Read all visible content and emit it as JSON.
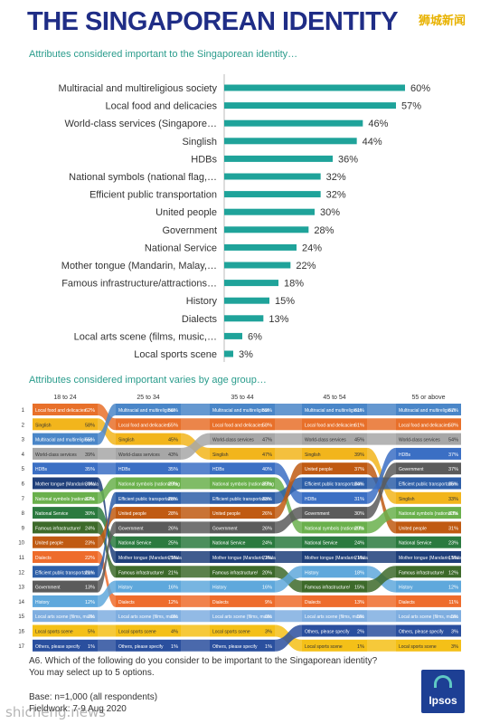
{
  "header": {
    "title": "THE SINGAPOREAN IDENTITY",
    "watermark": "狮城新闻",
    "subtitle_overall": "Attributes considered important to the Singaporean identity…",
    "subtitle_age": "Attributes considered important varies by age group…"
  },
  "footer": {
    "question": "A6. Which of the following do you consider to be important to the Singaporean identity? You may select up to 5 options.",
    "base": "Base: n=1,000 (all respondents)",
    "fieldwork": "Fieldwork: 7-9 Aug 2020",
    "logo_text": "Ipsos",
    "watermark": "shicheng.news"
  },
  "colors": {
    "title": "#1f2d86",
    "subtitle": "#2a9c8c",
    "bar": "#1fa39a"
  },
  "chart_data": [
    {
      "type": "bar",
      "orientation": "horizontal",
      "title": "Attributes considered important to the Singaporean identity…",
      "categories": [
        "Multiracial and multireligious society",
        "Local food and delicacies",
        "World-class services (Singapore…",
        "Singlish",
        "HDBs",
        "National symbols (national flag,…",
        "Efficient public transportation",
        "United people",
        "Government",
        "National Service",
        "Mother tongue (Mandarin, Malay,…",
        "Famous infrastructure/attractions…",
        "History",
        "Dialects",
        "Local arts scene (films, music,…",
        "Local sports scene"
      ],
      "values": [
        60,
        57,
        46,
        44,
        36,
        32,
        32,
        30,
        28,
        24,
        22,
        18,
        15,
        13,
        6,
        3
      ],
      "value_suffix": "%",
      "xlim": [
        0,
        60
      ]
    },
    {
      "type": "bump",
      "title": "Attributes considered important varies by age group…",
      "groups": [
        "18 to 24",
        "25 to 34",
        "35 to 44",
        "45 to 54",
        "55 or above"
      ],
      "ranks": [
        1,
        2,
        3,
        4,
        5,
        6,
        7,
        8,
        9,
        10,
        11,
        12,
        13,
        14,
        15,
        16,
        17
      ],
      "attribute_colors": {
        "Local food and delicacies": "#e8702a",
        "Singlish": "#f2b51c",
        "Multiracial and multireligious": "#4a86c8",
        "World-class services": "#a7a7a7",
        "HDBs": "#3b6fc4",
        "Mother tongue": "#1f3f7a",
        "National symbols": "#6ab04c",
        "National Service": "#2b7a3f",
        "Famous infrastructure": "#3d6a2a",
        "United people": "#c05a12",
        "Dialects": "#ee6c2c",
        "Efficient public transportation": "#2e5fa8",
        "Government": "#5b5b5b",
        "History": "#5fa8dc",
        "Local arts scene": "#7faee0",
        "Local sports scene": "#f4c018",
        "Others, please specify": "#2a4f9e"
      },
      "columns": [
        {
          "group": "18 to 24",
          "items": [
            {
              "label": "Local food and delicacies",
              "key": "Local food and delicacies",
              "value": "62%"
            },
            {
              "label": "Singlish",
              "key": "Singlish",
              "value": "58%"
            },
            {
              "label": "Multiracial and multireligious",
              "key": "Multiracial and multireligious",
              "value": "55%"
            },
            {
              "label": "World-class services",
              "key": "World-class services",
              "value": "39%"
            },
            {
              "label": "HDBs",
              "key": "HDBs",
              "value": "35%"
            },
            {
              "label": "Mother tongue (Mandarin, Mala",
              "key": "Mother tongue",
              "value": "30%"
            },
            {
              "label": "National symbols (national fla",
              "key": "National symbols",
              "value": "32%"
            },
            {
              "label": "National Service",
              "key": "National Service",
              "value": "30%"
            },
            {
              "label": "Famous infrastructure/",
              "key": "Famous infrastructure",
              "value": "24%"
            },
            {
              "label": "United people",
              "key": "United people",
              "value": "23%"
            },
            {
              "label": "Dialects",
              "key": "Dialects",
              "value": "22%"
            },
            {
              "label": "Efficient public transportation",
              "key": "Efficient public transportation",
              "value": "21%"
            },
            {
              "label": "Government",
              "key": "Government",
              "value": "13%"
            },
            {
              "label": "History",
              "key": "History",
              "value": "12%"
            },
            {
              "label": "Local arts scene (films, music",
              "key": "Local arts scene",
              "value": "7%"
            },
            {
              "label": "Local sports scene",
              "key": "Local sports scene",
              "value": "5%"
            },
            {
              "label": "Others, please specify",
              "key": "Others, please specify",
              "value": "1%"
            }
          ]
        },
        {
          "group": "25 to 34",
          "items": [
            {
              "label": "Multiracial and multireligious",
              "key": "Multiracial and multireligious",
              "value": "56%"
            },
            {
              "label": "Local food and delicacies",
              "key": "Local food and delicacies",
              "value": "55%"
            },
            {
              "label": "Singlish",
              "key": "Singlish",
              "value": "45%"
            },
            {
              "label": "World-class services",
              "key": "World-class services",
              "value": "43%"
            },
            {
              "label": "HDBs",
              "key": "HDBs",
              "value": "35%"
            },
            {
              "label": "National symbols (national flag",
              "key": "National symbols",
              "value": "29%"
            },
            {
              "label": "Efficient public transportation",
              "key": "Efficient public transportation",
              "value": "28%"
            },
            {
              "label": "United people",
              "key": "United people",
              "value": "28%"
            },
            {
              "label": "Government",
              "key": "Government",
              "value": "26%"
            },
            {
              "label": "National Service",
              "key": "National Service",
              "value": "25%"
            },
            {
              "label": "Mother tongue (Mandarin, Mala",
              "key": "Mother tongue",
              "value": "25%"
            },
            {
              "label": "Famous infrastructure/",
              "key": "Famous infrastructure",
              "value": "21%"
            },
            {
              "label": "History",
              "key": "History",
              "value": "16%"
            },
            {
              "label": "Dialects",
              "key": "Dialects",
              "value": "12%"
            },
            {
              "label": "Local arts scene (films, music",
              "key": "Local arts scene",
              "value": "6%"
            },
            {
              "label": "Local sports scene",
              "key": "Local sports scene",
              "value": "4%"
            },
            {
              "label": "Others, please specify",
              "key": "Others, please specify",
              "value": "1%"
            }
          ]
        },
        {
          "group": "35 to 44",
          "items": [
            {
              "label": "Multiracial and multireligious",
              "key": "Multiracial and multireligious",
              "value": "59%"
            },
            {
              "label": "Local food and delicacies",
              "key": "Local food and delicacies",
              "value": "58%"
            },
            {
              "label": "World-class services",
              "key": "World-class services",
              "value": "47%"
            },
            {
              "label": "Singlish",
              "key": "Singlish",
              "value": "47%"
            },
            {
              "label": "HDBs",
              "key": "HDBs",
              "value": "40%"
            },
            {
              "label": "National symbols (national flag",
              "key": "National symbols",
              "value": "35%"
            },
            {
              "label": "Efficient public transportation",
              "key": "Efficient public transportation",
              "value": "33%"
            },
            {
              "label": "United people",
              "key": "United people",
              "value": "26%"
            },
            {
              "label": "Government",
              "key": "Government",
              "value": "26%"
            },
            {
              "label": "National Service",
              "key": "National Service",
              "value": "24%"
            },
            {
              "label": "Mother tongue (Mandarin, Mala",
              "key": "Mother tongue",
              "value": "22%"
            },
            {
              "label": "Famous infrastructure/",
              "key": "Famous infrastructure",
              "value": "20%"
            },
            {
              "label": "History",
              "key": "History",
              "value": "16%"
            },
            {
              "label": "Dialects",
              "key": "Dialects",
              "value": "9%"
            },
            {
              "label": "Local arts scene (films, music",
              "key": "Local arts scene",
              "value": "6%"
            },
            {
              "label": "Local sports scene",
              "key": "Local sports scene",
              "value": "3%"
            },
            {
              "label": "Others, please specify",
              "key": "Others, please specify",
              "value": "1%"
            }
          ]
        },
        {
          "group": "45 to 54",
          "items": [
            {
              "label": "Multiracial and multireligious",
              "key": "Multiracial and multireligious",
              "value": "61%"
            },
            {
              "label": "Local food and delicacies",
              "key": "Local food and delicacies",
              "value": "61%"
            },
            {
              "label": "World-class services",
              "key": "World-class services",
              "value": "45%"
            },
            {
              "label": "Singlish",
              "key": "Singlish",
              "value": "39%"
            },
            {
              "label": "United people",
              "key": "United people",
              "value": "37%"
            },
            {
              "label": "Efficient public transportation",
              "key": "Efficient public transportation",
              "value": "34%"
            },
            {
              "label": "HDBs",
              "key": "HDBs",
              "value": "31%"
            },
            {
              "label": "Government",
              "key": "Government",
              "value": "30%"
            },
            {
              "label": "National symbols (national fla",
              "key": "National symbols",
              "value": "29%"
            },
            {
              "label": "National Service",
              "key": "National Service",
              "value": "24%"
            },
            {
              "label": "Mother tongue (Mandarin, Mala",
              "key": "Mother tongue",
              "value": "21%"
            },
            {
              "label": "History",
              "key": "History",
              "value": "18%"
            },
            {
              "label": "Famous infrastructure/",
              "key": "Famous infrastructure",
              "value": "15%"
            },
            {
              "label": "Dialects",
              "key": "Dialects",
              "value": "13%"
            },
            {
              "label": "Local arts scene (films, music",
              "key": "Local arts scene",
              "value": "5%"
            },
            {
              "label": "Others, please specify",
              "key": "Others, please specify",
              "value": "2%"
            },
            {
              "label": "Local sports scene",
              "key": "Local sports scene",
              "value": "1%"
            }
          ]
        },
        {
          "group": "55 or above",
          "items": [
            {
              "label": "Multiracial and multireligious",
              "key": "Multiracial and multireligious",
              "value": "67%"
            },
            {
              "label": "Local food and delicacies",
              "key": "Local food and delicacies",
              "value": "58%"
            },
            {
              "label": "World-class services",
              "key": "World-class services",
              "value": "54%"
            },
            {
              "label": "HDBs",
              "key": "HDBs",
              "value": "37%"
            },
            {
              "label": "Government",
              "key": "Government",
              "value": "37%"
            },
            {
              "label": "Efficient public transportation",
              "key": "Efficient public transportation",
              "value": "35%"
            },
            {
              "label": "Singlish",
              "key": "Singlish",
              "value": "33%"
            },
            {
              "label": "National symbols (national fla",
              "key": "National symbols",
              "value": "33%"
            },
            {
              "label": "United people",
              "key": "United people",
              "value": "31%"
            },
            {
              "label": "National Service",
              "key": "National Service",
              "value": "23%"
            },
            {
              "label": "Mother tongue (Mandarin, Mala",
              "key": "Mother tongue",
              "value": "15%"
            },
            {
              "label": "Famous infrastructure/",
              "key": "Famous infrastructure",
              "value": "12%"
            },
            {
              "label": "History",
              "key": "History",
              "value": "12%"
            },
            {
              "label": "Dialects",
              "key": "Dialects",
              "value": "11%"
            },
            {
              "label": "Local arts scene (films, music",
              "key": "Local arts scene",
              "value": "5%"
            },
            {
              "label": "Others, please specify",
              "key": "Others, please specify",
              "value": "3%"
            },
            {
              "label": "Local sports scene",
              "key": "Local sports scene",
              "value": "3%"
            }
          ]
        }
      ]
    }
  ]
}
